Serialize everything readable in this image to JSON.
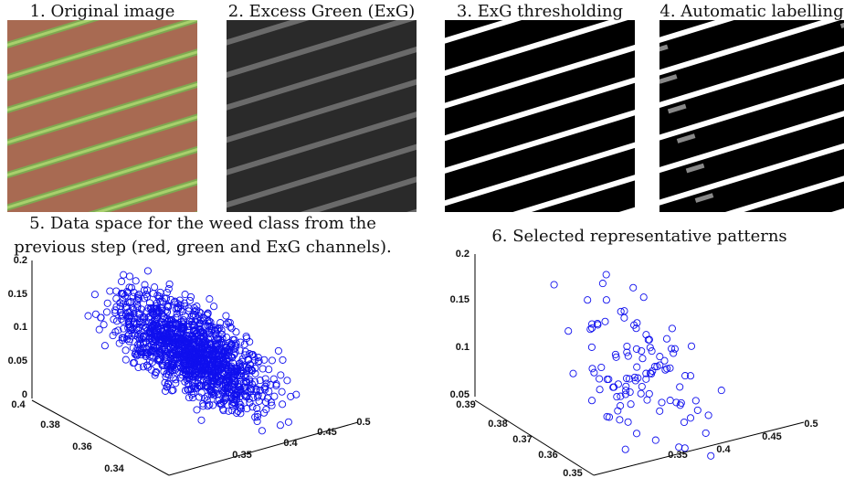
{
  "panels": [
    {
      "title": "1. Original image"
    },
    {
      "title": "2. Excess Green (ExG)"
    },
    {
      "title": "3. ExG thresholding"
    },
    {
      "title": "4. Automatic labelling"
    },
    {
      "title_lines": [
        "5. Data space for the weed class from the",
        "previous step (red, green and ExG channels)."
      ],
      "z_ticks": [
        0.2,
        0.15,
        0.1,
        0.05,
        0
      ],
      "depth_ticks": [
        0.4,
        0.38,
        0.36,
        0.34
      ],
      "width_ticks": [
        0.35,
        0.4,
        0.45,
        0.5
      ]
    },
    {
      "title": "6. Selected representative patterns",
      "z_ticks": [
        0.2,
        0.15,
        0.1,
        0.05
      ],
      "depth_ticks": [
        0.39,
        0.38,
        0.37,
        0.36,
        0.35
      ],
      "width_ticks": [
        0.35,
        0.4,
        0.45,
        0.5
      ]
    }
  ]
}
